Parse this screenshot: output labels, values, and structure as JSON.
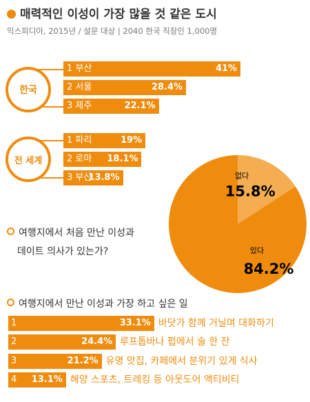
{
  "header": {
    "title": "매력적인 이성이 가장 많을 것 같은 도시",
    "subtitle": "익스피디아, 2015년 / 설문 대상 | 2040 한국 직장인 1,000명"
  },
  "sections": {
    "korea_label": "한국",
    "world_label": "전 세계"
  },
  "questions": {
    "q1": "여행지에서 처음 만난 이성과",
    "q2": "데이트 의사가 있는가?",
    "q3": "여행지에서 만난 이성과 가장 하고 싶은 일"
  },
  "accent_color": "#ef8c0e",
  "accent_light": "#f4ad50",
  "chart_data": [
    {
      "type": "bar",
      "group": "한국",
      "categories": [
        "1 부산",
        "2 서울",
        "3 제주"
      ],
      "values": [
        41,
        28.4,
        22.1
      ],
      "value_labels": [
        "41%",
        "28.4%",
        "22.1%"
      ]
    },
    {
      "type": "bar",
      "group": "전 세계",
      "categories": [
        "1 파리",
        "2 로마",
        "3 부산"
      ],
      "values": [
        19,
        18.1,
        13.8
      ],
      "value_labels": [
        "19%",
        "18.1%",
        "13.8%"
      ]
    },
    {
      "type": "pie",
      "slices": [
        {
          "label": "있다",
          "value": 84.2,
          "value_label": "84.2%",
          "color": "#ef8c0e"
        },
        {
          "label": "없다",
          "value": 15.8,
          "value_label": "15.8%",
          "color": "#f4ad50"
        }
      ]
    },
    {
      "type": "bar",
      "categories": [
        "1",
        "2",
        "3",
        "4"
      ],
      "activities": [
        "바닷가 함께 거닐며 대화하기",
        "루프톱바나 펍에서 술 한 잔",
        "유명 맛집, 카페에서 분위기 있게 식사",
        "해양 스포츠, 트레킹 등 아웃도어 액티비티"
      ],
      "values": [
        33.1,
        24.4,
        21.2,
        13.1
      ],
      "value_labels": [
        "33.1%",
        "24.4%",
        "21.2%",
        "13.1%"
      ]
    }
  ]
}
